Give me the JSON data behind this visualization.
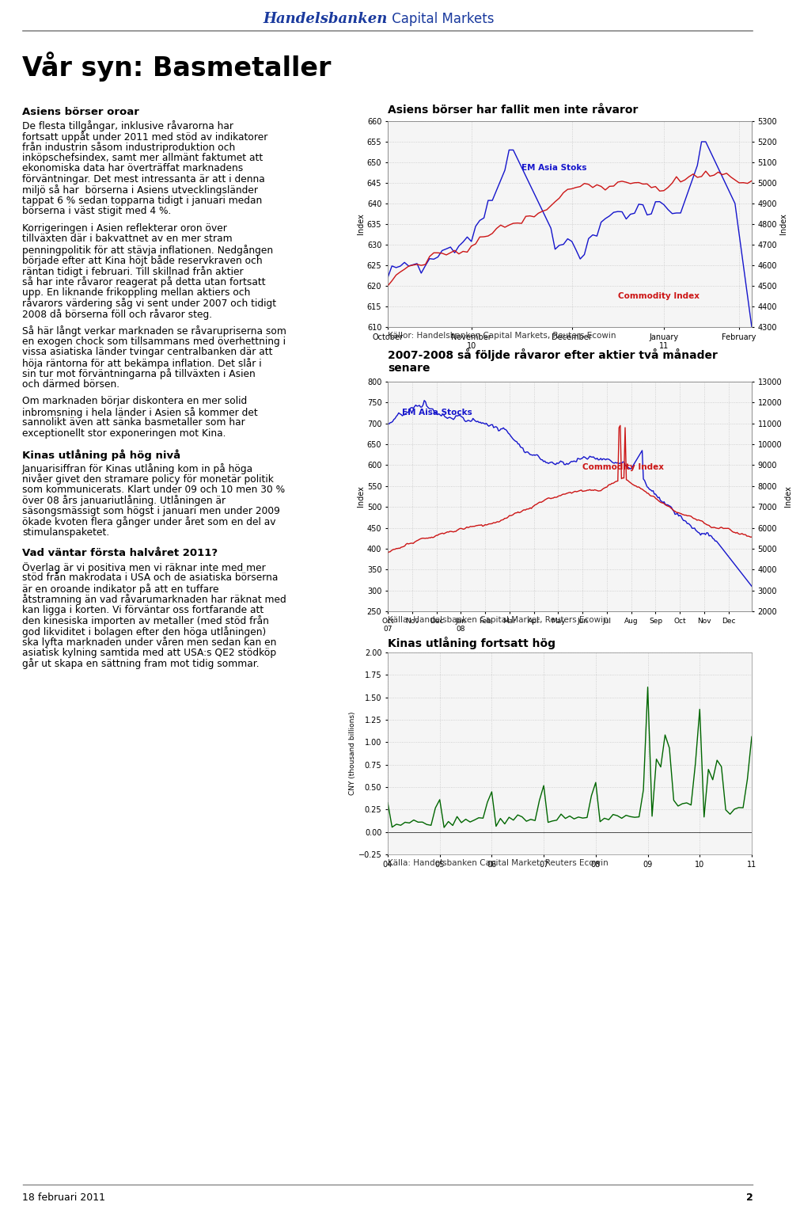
{
  "title_handelsbanken": "Handelsbanken",
  "title_capital_markets": " Capital Markets",
  "page_title": "Vår syn: Basmetaller",
  "footer_date": "18 februari 2011",
  "footer_page": "2",
  "header_line_color": "#888888",
  "footer_line_color": "#888888",
  "chart1": {
    "title": "Asiens börser har fallit men inte råvaror",
    "y1_label": "Index",
    "y2_label": "Index",
    "source": "Källor: Handelsbanken Capital Markets, Reuters Ecowin",
    "x_tick_labels": [
      "October",
      "November\n10",
      "December",
      "January\n11",
      "February"
    ],
    "x_tick_pos": [
      0,
      25,
      50,
      75,
      100
    ],
    "y1_min": 610,
    "y1_max": 660,
    "y1_ticks": [
      610,
      615,
      620,
      625,
      630,
      635,
      640,
      645,
      650,
      655,
      660
    ],
    "y2_min": 4300,
    "y2_max": 5300,
    "y2_ticks": [
      4300,
      4400,
      4500,
      4600,
      4700,
      4800,
      4900,
      5000,
      5100,
      5200,
      5300
    ],
    "blue_label": "EM Asia Stoks",
    "red_label": "Commodity Index",
    "blue_color": "#1515CC",
    "red_color": "#CC1515",
    "grid_color": "#bbbbbb",
    "bg_color": "#f5f5f5"
  },
  "chart2": {
    "title": "2007-2008 så följde råvaror efter aktier två månader\nsenare",
    "y1_label": "Index",
    "y2_label": "Index",
    "source": "Källa: Handelsbanken Capital Market, Reuters Ecowin",
    "x_tick_labels": [
      "Oct\n07",
      "Nov",
      "Dec",
      "Jan\n08",
      "Feb",
      "Mar",
      "Apr",
      "May",
      "Jun",
      "Jul",
      "Aug",
      "Sep",
      "Oct",
      "Nov",
      "Dec"
    ],
    "y1_min": 250,
    "y1_max": 800,
    "y1_ticks": [
      250,
      300,
      350,
      400,
      450,
      500,
      550,
      600,
      650,
      700,
      750,
      800
    ],
    "y2_min": 2000,
    "y2_max": 13000,
    "y2_ticks": [
      2000,
      3000,
      4000,
      5000,
      6000,
      7000,
      8000,
      9000,
      10000,
      11000,
      12000,
      13000
    ],
    "blue_label": "EM Aisa Stocks",
    "red_label": "Commodity Index",
    "blue_color": "#1515CC",
    "red_color": "#CC1515",
    "grid_color": "#bbbbbb",
    "bg_color": "#f5f5f5"
  },
  "chart3": {
    "title": "Kinas utlåning fortsatt hög",
    "y_label": "CNY (thousand billions)",
    "source": "Källa: Handelsbanken Capital Market, Reuters Ecowin",
    "x_tick_labels": [
      "04",
      "05",
      "06",
      "07",
      "08",
      "09",
      "10",
      "11"
    ],
    "y_min": -0.25,
    "y_max": 2.0,
    "y_ticks": [
      -0.25,
      0.0,
      0.25,
      0.5,
      0.75,
      1.0,
      1.25,
      1.5,
      1.75,
      2.0
    ],
    "line_color": "#006600",
    "grid_color": "#bbbbbb",
    "bg_color": "#f5f5f5"
  },
  "left_text": [
    {
      "type": "heading",
      "text": "Asiens börser oroar"
    },
    {
      "type": "body",
      "text": "De flesta tillgångar, inklusive råvarorna har fortsatt uppåt under 2011 med stöd av indikatorer från industrin såsom industriproduktion och inköpschefsindex, samt mer allmänt faktumet att ekonomiska data har överträffat marknadens förväntningar. Det mest intressanta är att i denna miljö så har  börserna i Asiens utvecklingsländer tappat 6 % sedan topparna tidigt i januari medan börserna i väst stigit med 4 %."
    },
    {
      "type": "body",
      "text": "Korrigeringen i Asien reflekterar oron över tillväxten där i bakvattnet av en mer stram penningpolitik för att stävja inflationen. Nedgången började efter att Kina höjt både reservkraven och räntan tidigt i februari. Till skillnad från aktier så har inte råvaror reagerat på detta utan fortsatt upp. En liknande frikoppling mellan aktiers och råvarors värdering såg vi sent under 2007 och tidigt 2008 då börserna föll och råvaror steg."
    },
    {
      "type": "body",
      "text": "Så här långt verkar marknaden se råvarupriserna som en exogen chock som tillsammans med överhettning i vissa asiatiska länder tvingar centralbanken där att höja räntorna för att bekämpa inflation. Det slår i sin tur mot förväntningarna på tillväxten i Asien och därmed börsen."
    },
    {
      "type": "body",
      "text": "Om marknaden börjar diskontera en mer solid inbromsning i hela länder i Asien så kommer det sannolikt även att sänka basmetaller som har exceptionellt stor exponeringen mot Kina."
    },
    {
      "type": "heading",
      "text": "Kinas utlåning på hög nivå"
    },
    {
      "type": "body",
      "text": "Januarisiffran för Kinas utlåning kom in på höga nivåer givet den stramare policy för monetär politik som kommunicerats. Klart under 09 och 10 men 30 % över 08 års januariutlåning. Utlåningen är säsongsmässigt som högst i januari men under 2009 ökade kvoten flera gånger under året som en del av stimulanspaketet."
    },
    {
      "type": "heading",
      "text": "Vad väntar första halvåret 2011?"
    },
    {
      "type": "body",
      "text": "Överlag är vi positiva men vi räknar inte med mer stöd från makrodata i USA och de asiatiska börserna är en oroande indikator på att en tuffare åtstramning än vad råvarumarknaden har räknat med kan ligga i korten. Vi förväntar oss fortfarande att den kinesiska importen av metaller (med stöd från god likviditet i bolagen efter den höga utlåningen) ska lyfta marknaden under våren men sedan kan en asiatisk kylning samtida med att USA:s QE2 stödköp går ut skapa en sättning fram mot tidig sommar."
    }
  ],
  "background_color": "#ffffff",
  "text_color": "#000000"
}
